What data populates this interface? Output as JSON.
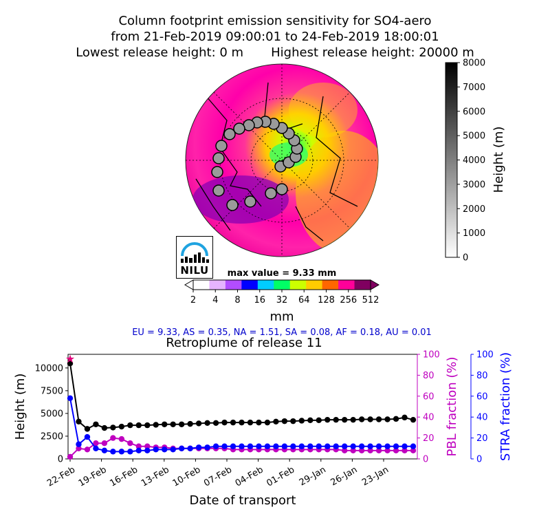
{
  "header": {
    "line1": "Column footprint emission sensitivity for SO4-aero",
    "line2": "from 21-Feb-2019 09:00:01 to 24-Feb-2019 18:00:01",
    "line3": "Lowest release height: 0 m       Highest release height: 20000 m"
  },
  "map": {
    "max_value_label": "max value = 9.33 mm",
    "colorbar_ticks": [
      "2",
      "4",
      "8",
      "16",
      "32",
      "64",
      "128",
      "256",
      "512"
    ],
    "colorbar_label": "mm",
    "colors": [
      "#ffffff",
      "#e6b3ff",
      "#b24dff",
      "#0000ff",
      "#00ccff",
      "#00ff66",
      "#ccff00",
      "#ffcc00",
      "#ff6600",
      "#ff0099",
      "#800060"
    ]
  },
  "height_bar": {
    "ticks": [
      "0",
      "1000",
      "2000",
      "3000",
      "4000",
      "5000",
      "6000",
      "7000",
      "8000"
    ],
    "label": "Height (m)"
  },
  "logo": {
    "text": "NILU"
  },
  "regions_line": "EU = 9.33,  AS = 0.35,  NA = 1.51,  SA = 0.08,  AF = 0.18,  AU = 0.01",
  "chart_data": {
    "type": "line",
    "title": "Retroplume of release 11",
    "xlabel": "Date of transport",
    "ylabel_left": "Height (m)",
    "ylabel_pbl": "PBL fraction (%)",
    "ylabel_stra": "STRA fraction (%)",
    "x_tick_labels": [
      "22-Feb",
      "19-Feb",
      "16-Feb",
      "13-Feb",
      "10-Feb",
      "07-Feb",
      "04-Feb",
      "01-Feb",
      "29-Jan",
      "26-Jan",
      "23-Jan"
    ],
    "y_left_ticks": [
      "0",
      "2500",
      "5000",
      "7500",
      "10000"
    ],
    "y_right_ticks": [
      "0",
      "20",
      "40",
      "60",
      "80",
      "100"
    ],
    "y_left_lim": [
      0,
      11500
    ],
    "y_right_lim": [
      0,
      100
    ],
    "series": [
      {
        "color": "#000000",
        "values": [
          10500,
          4100,
          3300,
          3800,
          3400,
          3450,
          3550,
          3700,
          3700,
          3700,
          3750,
          3800,
          3800,
          3800,
          3850,
          3900,
          3950,
          3950,
          4000,
          4000,
          4000,
          4000,
          4000,
          4000,
          4100,
          4150,
          4150,
          4200,
          4250,
          4250,
          4300,
          4300,
          4300,
          4300,
          4350,
          4350,
          4350,
          4350,
          4400,
          4550,
          4300
        ]
      },
      {
        "color": "#bf00bf",
        "values": [
          2,
          10,
          9,
          15,
          15,
          20,
          19,
          15,
          12,
          12,
          11,
          11,
          10,
          10,
          10,
          10,
          10,
          10,
          10,
          9,
          9,
          9,
          9,
          9,
          9,
          9,
          9,
          9,
          9,
          9,
          9,
          9,
          8,
          8,
          8,
          8,
          8,
          8,
          8,
          8,
          8
        ]
      },
      {
        "color": "#0000ff",
        "values": [
          58,
          14,
          21,
          10,
          8,
          7,
          7,
          7,
          8,
          8,
          9,
          9,
          9,
          10,
          10,
          11,
          11,
          12,
          12,
          12,
          12,
          12,
          12,
          12,
          12,
          12,
          12,
          12,
          12,
          12,
          12,
          12,
          12,
          12,
          12,
          12,
          12,
          12,
          12,
          12,
          12
        ]
      }
    ]
  }
}
